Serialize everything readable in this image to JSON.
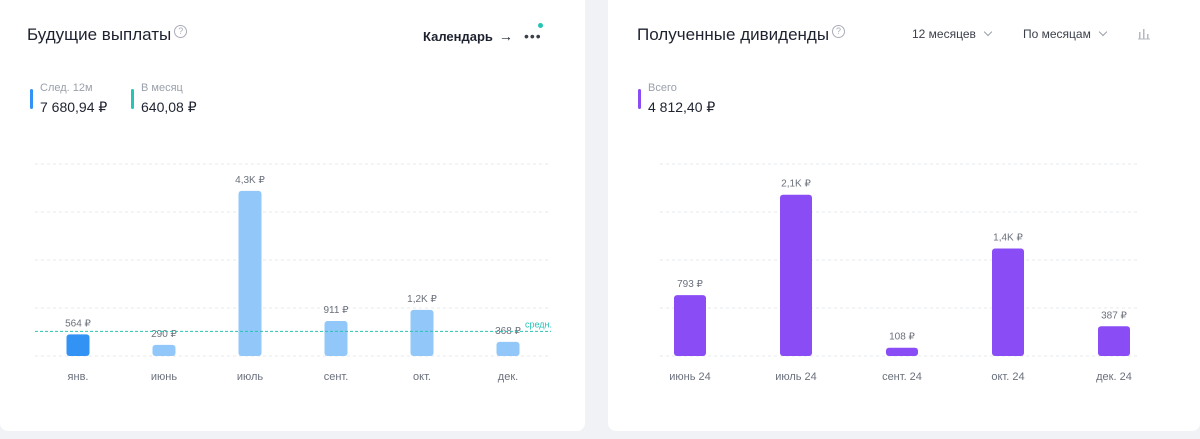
{
  "left_card": {
    "title": "Будущие выплаты",
    "help_icon": "?",
    "calendar_link": "Календарь",
    "arrow_icon": "→",
    "more_icon": "more-dots",
    "stats": [
      {
        "label": "След. 12м",
        "value": "7 680,94 ₽",
        "color": "#3393f5"
      },
      {
        "label": "В месяц",
        "value": "640,08 ₽",
        "color": "#27c3b4"
      }
    ],
    "avg_label": "средн.",
    "colors": {
      "highlight": "#3393f5",
      "bar": "#92c7fa",
      "avg_line": "#27c3b4"
    }
  },
  "right_card": {
    "title": "Полученные дивиденды",
    "help_icon": "?",
    "period_dropdown": "12 месяцев",
    "group_dropdown": "По месяцам",
    "chart_type_icon": "bar-chart-icon",
    "stats": [
      {
        "label": "Всего",
        "value": "4 812,40 ₽",
        "color": "#8a4df5"
      }
    ],
    "colors": {
      "bar": "#8a4df5"
    }
  },
  "chart_data": [
    {
      "type": "bar",
      "categories": [
        "янв.",
        "июнь",
        "июль",
        "сент.",
        "окт.",
        "дек."
      ],
      "values": [
        564,
        290,
        4300,
        911,
        1200,
        368
      ],
      "data_labels": [
        "564 ₽",
        "290 ₽",
        "4,3K ₽",
        "911 ₽",
        "1,2K ₽",
        "368 ₽"
      ],
      "highlight_index": 0,
      "average": 640.08,
      "average_label": "средн.",
      "ylim": [
        0,
        5000
      ],
      "grid": true
    },
    {
      "type": "bar",
      "categories": [
        "июнь 24",
        "июль 24",
        "сент. 24",
        "окт. 24",
        "дек. 24"
      ],
      "values": [
        793,
        2100,
        108,
        1400,
        387
      ],
      "data_labels": [
        "793 ₽",
        "2,1K ₽",
        "108 ₽",
        "1,4K ₽",
        "387 ₽"
      ],
      "ylim": [
        0,
        2500
      ],
      "grid": true
    }
  ]
}
